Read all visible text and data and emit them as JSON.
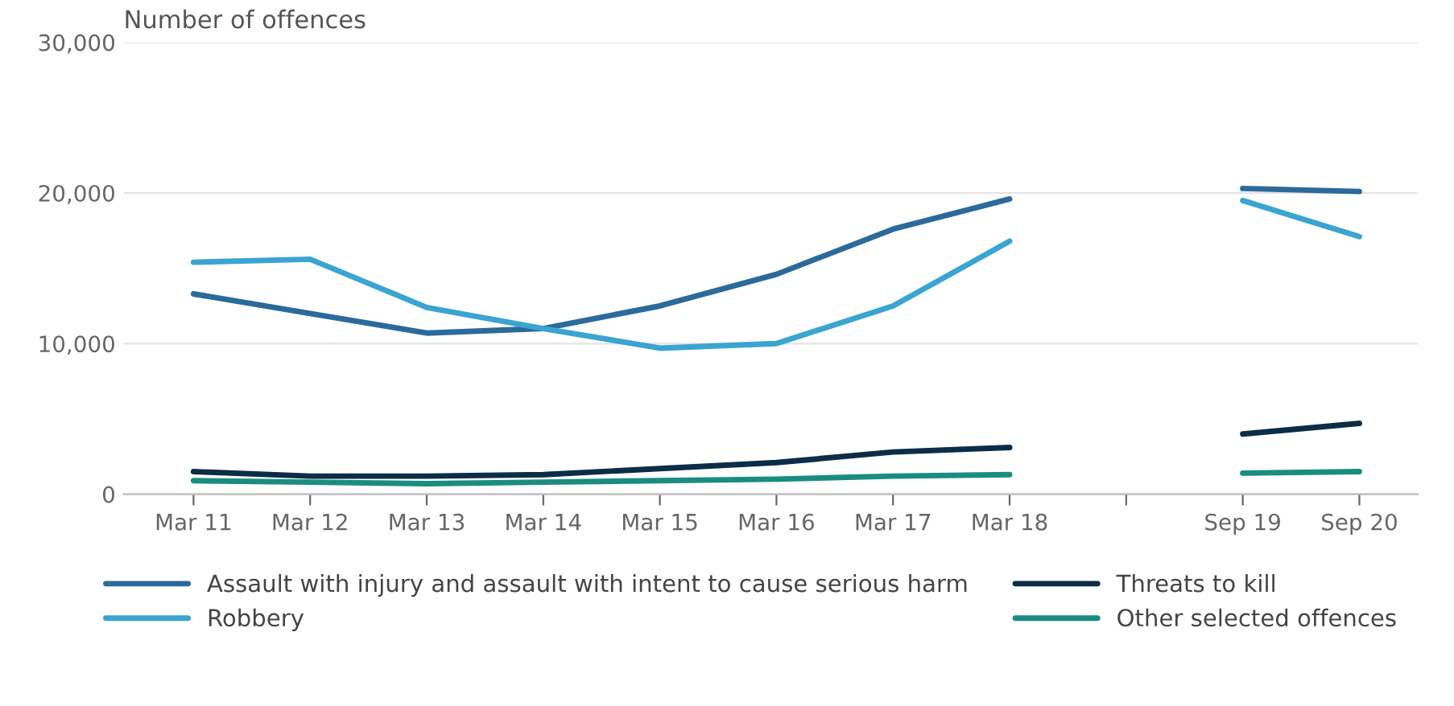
{
  "chart_data": {
    "type": "line",
    "ylabel": "Number of offences",
    "categories": [
      "Mar 11",
      "Mar 12",
      "Mar 13",
      "Mar 14",
      "Mar 15",
      "Mar 16",
      "Mar 17",
      "Mar 18",
      null,
      "Sep 19",
      "Sep 20"
    ],
    "series": [
      {
        "name": "Assault with injury and assault with intent to cause serious harm",
        "color": "#2b6a9b",
        "values": [
          13300,
          12000,
          10700,
          11000,
          12500,
          14600,
          17600,
          19600,
          null,
          20300,
          20100
        ]
      },
      {
        "name": "Robbery",
        "color": "#3aa4d2",
        "values": [
          15400,
          15600,
          12400,
          11000,
          9700,
          10000,
          12500,
          16800,
          null,
          19500,
          17100
        ]
      },
      {
        "name": "Threats to kill",
        "color": "#0c2d48",
        "values": [
          1500,
          1200,
          1200,
          1300,
          1700,
          2100,
          2800,
          3100,
          null,
          4000,
          4700
        ]
      },
      {
        "name": "Other selected offences",
        "color": "#1b8c82",
        "values": [
          900,
          800,
          700,
          800,
          900,
          1000,
          1200,
          1300,
          null,
          1400,
          1500
        ]
      }
    ],
    "ylim": [
      0,
      30000
    ],
    "yticks": [
      {
        "value": 0,
        "label": "0"
      },
      {
        "value": 10000,
        "label": "10,000"
      },
      {
        "value": 20000,
        "label": "20,000"
      },
      {
        "value": 30000,
        "label": "30,000"
      }
    ],
    "grid": "y",
    "legend": "bottom",
    "marker": "none",
    "line_style": "solid"
  }
}
